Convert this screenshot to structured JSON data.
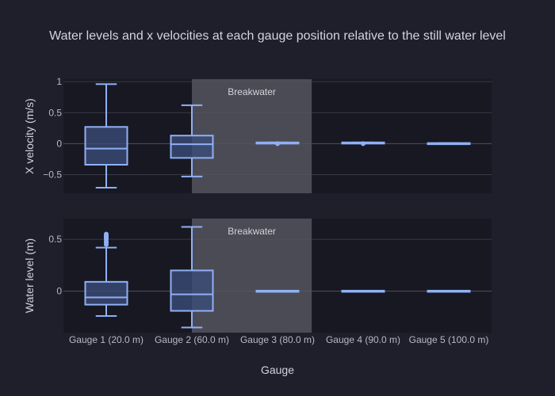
{
  "colors": {
    "background": "#1f1e2b",
    "plot_background": "#181822",
    "grid": "#3a3a48",
    "zero_line": "#50505e",
    "box_line": "#8fb0f4",
    "box_fill": "#3c4c78",
    "region_fill": "#55555e",
    "text": "#d3d3dc",
    "tick_text": "#b8b8c8"
  },
  "chart_data": {
    "type": "box",
    "title": "Water levels and x velocities at each gauge position relative to the still water level",
    "xlabel": "Gauge",
    "categories": [
      "Gauge 1 (20.0 m)",
      "Gauge 2 (60.0 m)",
      "Gauge 3 (80.0 m)",
      "Gauge 4 (90.0 m)",
      "Gauge 5 (100.0 m)"
    ],
    "shaded_region": {
      "label": "Breakwater",
      "from_category": 1.5,
      "to_category": 2.9
    },
    "subplots": [
      {
        "ylabel": "X velocity (m/s)",
        "ylim": [
          -0.8,
          1.04
        ],
        "ticks": [
          -0.5,
          0,
          0.5,
          1
        ],
        "tick_labels": [
          "−0.5",
          "0",
          "0.5",
          "1"
        ],
        "boxes": [
          {
            "category": "Gauge 1 (20.0 m)",
            "min": -0.71,
            "q1": -0.34,
            "median": -0.08,
            "q3": 0.27,
            "max": 0.96,
            "outliers": []
          },
          {
            "category": "Gauge 2 (60.0 m)",
            "min": -0.53,
            "q1": -0.23,
            "median": -0.01,
            "q3": 0.13,
            "max": 0.62,
            "outliers": []
          },
          {
            "category": "Gauge 3 (80.0 m)",
            "min": 0.01,
            "q1": 0.01,
            "median": 0.01,
            "q3": 0.02,
            "max": 0.02,
            "outliers": [
              0.0
            ]
          },
          {
            "category": "Gauge 4 (90.0 m)",
            "min": 0.01,
            "q1": 0.01,
            "median": 0.01,
            "q3": 0.02,
            "max": 0.02,
            "outliers": [
              0.0
            ]
          },
          {
            "category": "Gauge 5 (100.0 m)",
            "min": 0.0,
            "q1": 0.0,
            "median": 0.0,
            "q3": 0.01,
            "max": 0.01,
            "outliers": []
          }
        ]
      },
      {
        "ylabel": "Water level (m)",
        "ylim": [
          -0.4,
          0.7
        ],
        "ticks": [
          0,
          0.5
        ],
        "tick_labels": [
          "0",
          "0.5"
        ],
        "boxes": [
          {
            "category": "Gauge 1 (20.0 m)",
            "min": -0.24,
            "q1": -0.13,
            "median": -0.06,
            "q3": 0.09,
            "max": 0.42,
            "outliers": [
              0.45,
              0.47,
              0.48,
              0.5,
              0.51,
              0.52,
              0.53,
              0.54,
              0.55
            ]
          },
          {
            "category": "Gauge 2 (60.0 m)",
            "min": -0.35,
            "q1": -0.19,
            "median": -0.03,
            "q3": 0.2,
            "max": 0.62,
            "outliers": []
          },
          {
            "category": "Gauge 3 (80.0 m)",
            "min": 0.0,
            "q1": 0.0,
            "median": 0.0,
            "q3": 0.005,
            "max": 0.005,
            "outliers": []
          },
          {
            "category": "Gauge 4 (90.0 m)",
            "min": 0.0,
            "q1": 0.0,
            "median": 0.0,
            "q3": 0.005,
            "max": 0.005,
            "outliers": []
          },
          {
            "category": "Gauge 5 (100.0 m)",
            "min": 0.0,
            "q1": 0.0,
            "median": 0.0,
            "q3": 0.005,
            "max": 0.005,
            "outliers": []
          }
        ]
      }
    ]
  }
}
